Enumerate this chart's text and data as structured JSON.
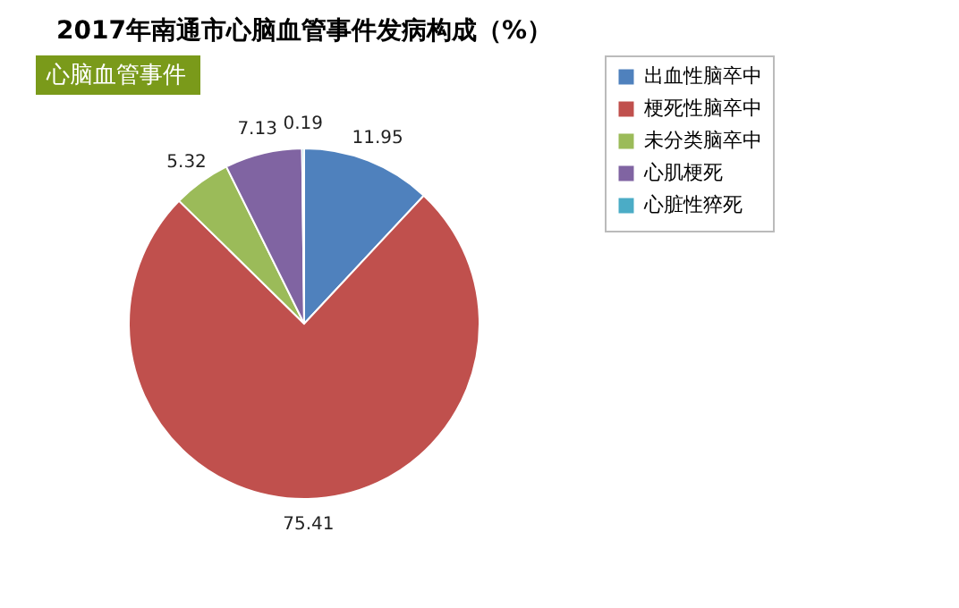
{
  "chart_data": {
    "type": "pie",
    "title": "2017年南通市心脑血管事件发病构成（%）",
    "annotations": [
      "心脑血管事件"
    ],
    "categories": [
      "出血性脑卒中",
      "梗死性脑卒中",
      "未分类脑卒中",
      "心肌梗死",
      "心脏性猝死"
    ],
    "values": [
      11.95,
      75.41,
      5.32,
      7.13,
      0.19
    ],
    "colors": [
      "#4f81bd",
      "#c0504d",
      "#9bbb59",
      "#8064a2",
      "#4bacc6"
    ],
    "data_labels": true,
    "legend": "right"
  }
}
